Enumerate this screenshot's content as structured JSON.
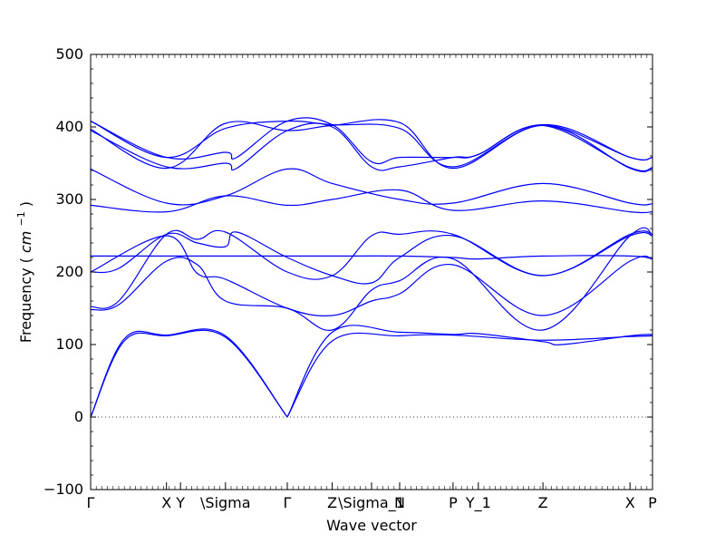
{
  "chart_data": {
    "type": "line",
    "title": "",
    "xlabel": "Wave vector",
    "ylabel": "Frequency",
    "ylabel_unit": "cm",
    "ylabel_unit_exp": "−1",
    "ylim": [
      -100,
      500
    ],
    "yticks": [
      -100,
      0,
      100,
      200,
      300,
      400,
      500
    ],
    "xlim": [
      0,
      1
    ],
    "xticks": [
      {
        "x": 0.0,
        "label": "Γ"
      },
      {
        "x": 0.135,
        "label": "X"
      },
      {
        "x": 0.16,
        "label": "Y"
      },
      {
        "x": 0.24,
        "label": "\\Sigma"
      },
      {
        "x": 0.35,
        "label": "Γ"
      },
      {
        "x": 0.43,
        "label": "Z"
      },
      {
        "x": 0.5,
        "label": "\\Sigma_1"
      },
      {
        "x": 0.55,
        "label": "N"
      },
      {
        "x": 0.645,
        "label": "P"
      },
      {
        "x": 0.69,
        "label": "Y_1"
      },
      {
        "x": 0.805,
        "label": "Z"
      },
      {
        "x": 0.96,
        "label": "X"
      },
      {
        "x": 1.0,
        "label": "P"
      }
    ],
    "zero_line": true,
    "series_color": "#0000ff",
    "series": [
      {
        "x": [
          0,
          0.06,
          0.135,
          0.24,
          0.35
        ],
        "y": [
          0,
          108,
          113,
          112,
          0
        ]
      },
      {
        "x": [
          0,
          0.06,
          0.135,
          0.24,
          0.35
        ],
        "y": [
          0,
          105,
          112,
          110,
          0
        ]
      },
      {
        "x": [
          0.35,
          0.43,
          0.55,
          0.645,
          0.805,
          0.96,
          1.0
        ],
        "y": [
          0,
          105,
          112,
          113,
          106,
          111,
          112
        ]
      },
      {
        "x": [
          0.35,
          0.43,
          0.55,
          0.645,
          0.69,
          0.805,
          0.84,
          0.96,
          1.0
        ],
        "y": [
          0,
          117,
          117,
          114,
          115,
          104,
          100,
          112,
          114
        ]
      },
      {
        "x": [
          0,
          0.135,
          0.24,
          0.35,
          0.43,
          0.55,
          0.645,
          0.69,
          0.805,
          0.96,
          1.0
        ],
        "y": [
          222,
          222,
          222,
          222,
          222,
          222,
          220,
          218,
          222,
          222,
          218
        ]
      },
      {
        "x": [
          0,
          0.05,
          0.135,
          0.19,
          0.24,
          0.26,
          0.35,
          0.43,
          0.5,
          0.55,
          0.645,
          0.805,
          0.96,
          1.0
        ],
        "y": [
          200,
          205,
          252,
          240,
          235,
          255,
          220,
          195,
          185,
          220,
          250,
          195,
          250,
          250
        ]
      },
      {
        "x": [
          0,
          0.05,
          0.135,
          0.19,
          0.24,
          0.35,
          0.43,
          0.5,
          0.55,
          0.645,
          0.805,
          0.96,
          1.0
        ],
        "y": [
          152,
          160,
          252,
          245,
          255,
          200,
          195,
          250,
          252,
          252,
          195,
          252,
          252
        ]
      },
      {
        "x": [
          0,
          0.05,
          0.135,
          0.19,
          0.24,
          0.35,
          0.43,
          0.5,
          0.55,
          0.645,
          0.805,
          0.96,
          1.0
        ],
        "y": [
          148,
          155,
          215,
          210,
          160,
          150,
          120,
          175,
          188,
          218,
          120,
          250,
          252
        ]
      },
      {
        "x": [
          0,
          0.135,
          0.19,
          0.24,
          0.35,
          0.43,
          0.5,
          0.55,
          0.645,
          0.805,
          0.96,
          1.0
        ],
        "y": [
          200,
          250,
          198,
          190,
          150,
          140,
          160,
          170,
          210,
          140,
          215,
          218
        ]
      },
      {
        "x": [
          0,
          0.135,
          0.24,
          0.35,
          0.43,
          0.55,
          0.645,
          0.805,
          0.96,
          1.0
        ],
        "y": [
          292,
          283,
          305,
          292,
          300,
          313,
          285,
          298,
          283,
          283
        ]
      },
      {
        "x": [
          0,
          0.135,
          0.24,
          0.35,
          0.43,
          0.55,
          0.645,
          0.805,
          0.96,
          1.0
        ],
        "y": [
          342,
          295,
          305,
          342,
          322,
          300,
          295,
          322,
          295,
          294
        ]
      },
      {
        "x": [
          0,
          0.135,
          0.24,
          0.26,
          0.35,
          0.43,
          0.5,
          0.55,
          0.645,
          0.69,
          0.805,
          0.96,
          1.0
        ],
        "y": [
          395,
          345,
          350,
          343,
          395,
          400,
          345,
          345,
          358,
          362,
          402,
          344,
          344
        ]
      },
      {
        "x": [
          0,
          0.135,
          0.24,
          0.26,
          0.35,
          0.43,
          0.5,
          0.55,
          0.645,
          0.69,
          0.805,
          0.96,
          1.0
        ],
        "y": [
          408,
          358,
          365,
          358,
          408,
          403,
          352,
          358,
          358,
          362,
          403,
          358,
          358
        ]
      },
      {
        "x": [
          0,
          0.135,
          0.24,
          0.35,
          0.43,
          0.55,
          0.645,
          0.805,
          0.96,
          1.0
        ],
        "y": [
          397,
          343,
          405,
          395,
          402,
          406,
          343,
          402,
          343,
          343
        ]
      },
      {
        "x": [
          0,
          0.135,
          0.24,
          0.35,
          0.43,
          0.55,
          0.645,
          0.805,
          0.96,
          1.0
        ],
        "y": [
          408,
          358,
          398,
          408,
          403,
          398,
          345,
          403,
          358,
          358
        ]
      }
    ]
  }
}
